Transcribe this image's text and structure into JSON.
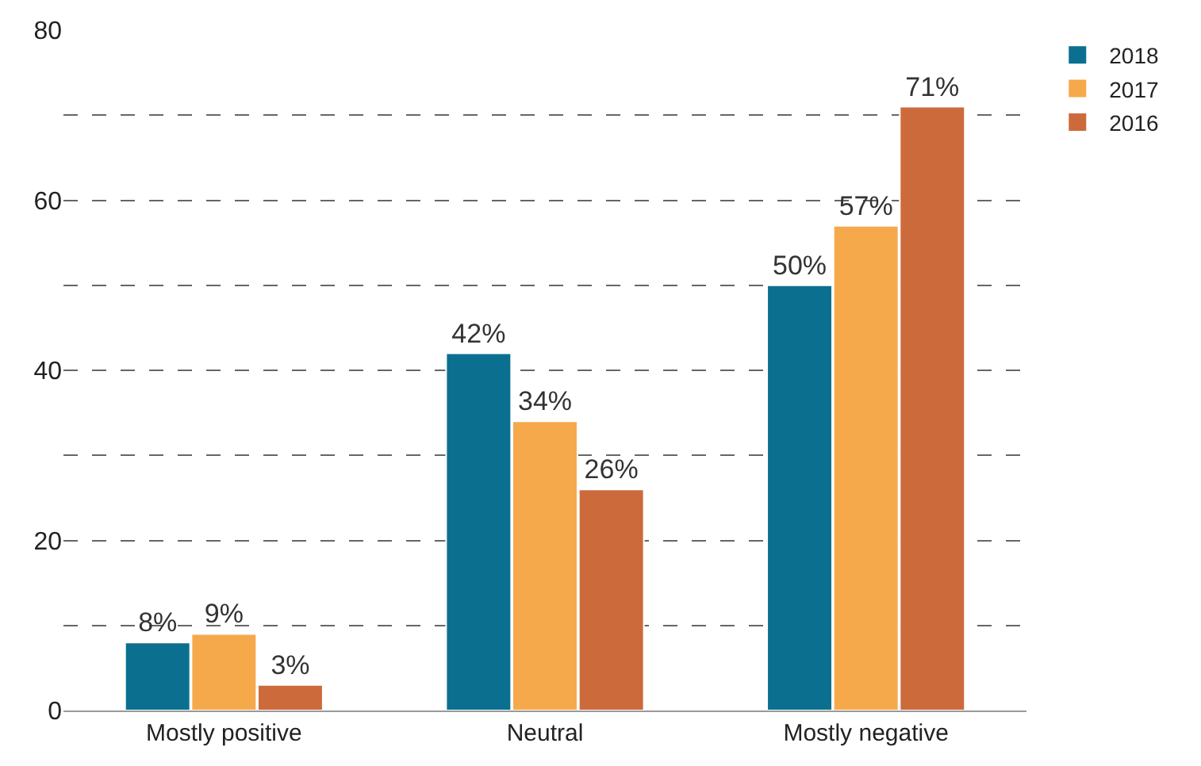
{
  "chart_data": {
    "type": "bar",
    "categories": [
      "Mostly positive",
      "Neutral",
      "Mostly negative"
    ],
    "series": [
      {
        "name": "2018",
        "color": "#0b7090",
        "values": [
          8,
          42,
          50
        ],
        "value_labels": [
          "8%",
          "42%",
          "50%"
        ]
      },
      {
        "name": "2017",
        "color": "#f6a94b",
        "values": [
          9,
          34,
          57
        ],
        "value_labels": [
          "9%",
          "34%",
          "57%"
        ]
      },
      {
        "name": "2016",
        "color": "#cd6a3c",
        "values": [
          3,
          26,
          71
        ],
        "value_labels": [
          "3%",
          "26%",
          "71%"
        ]
      }
    ],
    "ylim": [
      0,
      80
    ],
    "yticks": [
      0,
      {
        "value": 10,
        "label": null
      },
      20,
      {
        "value": 30,
        "label": null
      },
      40,
      {
        "value": 50,
        "label": null
      },
      60,
      {
        "value": 70,
        "label": null
      },
      80
    ],
    "grid": "y",
    "legend": "top right"
  }
}
